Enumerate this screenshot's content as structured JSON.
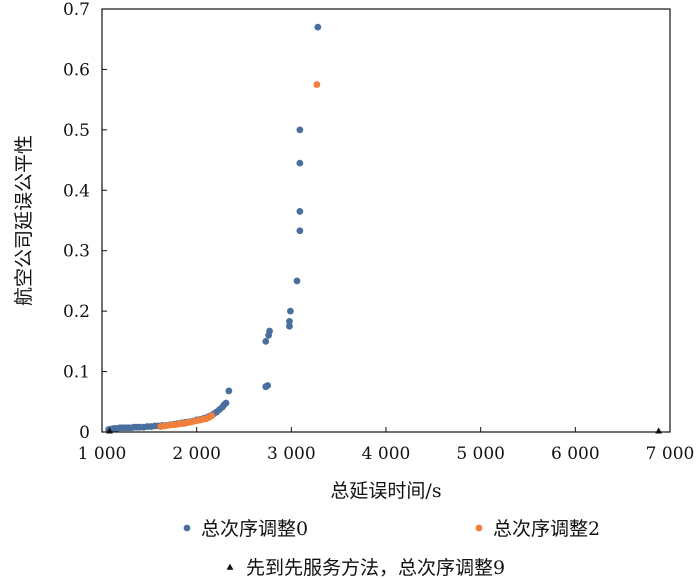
{
  "chart_data": {
    "type": "scatter",
    "xlabel": "总延误时间/s",
    "ylabel": "航空公司延误公平性",
    "xlim": [
      1000,
      7000
    ],
    "ylim": [
      0,
      0.7
    ],
    "x_ticks": [
      {
        "value": 1000,
        "label": "1 000"
      },
      {
        "value": 2000,
        "label": "2 000"
      },
      {
        "value": 3000,
        "label": "3 000"
      },
      {
        "value": 4000,
        "label": "4 000"
      },
      {
        "value": 5000,
        "label": "5 000"
      },
      {
        "value": 6000,
        "label": "6 000"
      },
      {
        "value": 7000,
        "label": "7 000"
      }
    ],
    "y_ticks": [
      {
        "value": 0,
        "label": "0"
      },
      {
        "value": 0.1,
        "label": "0.1"
      },
      {
        "value": 0.2,
        "label": "0.2"
      },
      {
        "value": 0.3,
        "label": "0.3"
      },
      {
        "value": 0.4,
        "label": "0.4"
      },
      {
        "value": 0.5,
        "label": "0.5"
      },
      {
        "value": 0.6,
        "label": "0.6"
      },
      {
        "value": 0.7,
        "label": "0.7"
      }
    ],
    "grid": false,
    "legend_position": "bottom",
    "series": [
      {
        "name": "总次序调整0",
        "color": "#4a6f9e",
        "marker": "circle",
        "points": [
          [
            1070,
            0.004
          ],
          [
            1100,
            0.005
          ],
          [
            1130,
            0.006
          ],
          [
            1160,
            0.006
          ],
          [
            1190,
            0.007
          ],
          [
            1220,
            0.007
          ],
          [
            1250,
            0.007
          ],
          [
            1280,
            0.007
          ],
          [
            1310,
            0.007
          ],
          [
            1340,
            0.008
          ],
          [
            1370,
            0.008
          ],
          [
            1400,
            0.008
          ],
          [
            1440,
            0.008
          ],
          [
            1480,
            0.009
          ],
          [
            1520,
            0.009
          ],
          [
            1560,
            0.01
          ],
          [
            1600,
            0.01
          ],
          [
            1640,
            0.011
          ],
          [
            1680,
            0.011
          ],
          [
            1720,
            0.012
          ],
          [
            1760,
            0.013
          ],
          [
            1800,
            0.014
          ],
          [
            1840,
            0.015
          ],
          [
            1880,
            0.016
          ],
          [
            1920,
            0.017
          ],
          [
            1960,
            0.018
          ],
          [
            2000,
            0.02
          ],
          [
            2040,
            0.021
          ],
          [
            2080,
            0.023
          ],
          [
            2120,
            0.025
          ],
          [
            2150,
            0.027
          ],
          [
            2180,
            0.03
          ],
          [
            2210,
            0.033
          ],
          [
            2240,
            0.037
          ],
          [
            2270,
            0.041
          ],
          [
            2290,
            0.045
          ],
          [
            2310,
            0.048
          ],
          [
            2340,
            0.068
          ],
          [
            2730,
            0.075
          ],
          [
            2750,
            0.077
          ],
          [
            2730,
            0.15
          ],
          [
            2760,
            0.16
          ],
          [
            2770,
            0.167
          ],
          [
            2980,
            0.175
          ],
          [
            2980,
            0.183
          ],
          [
            2990,
            0.2
          ],
          [
            3060,
            0.25
          ],
          [
            3090,
            0.333
          ],
          [
            3090,
            0.365
          ],
          [
            3090,
            0.445
          ],
          [
            3090,
            0.5
          ],
          [
            3280,
            0.67
          ]
        ]
      },
      {
        "name": "总次序调整2",
        "color": "#f07f3c",
        "marker": "circle",
        "points": [
          [
            1620,
            0.009
          ],
          [
            1660,
            0.01
          ],
          [
            1700,
            0.011
          ],
          [
            1740,
            0.012
          ],
          [
            1770,
            0.012
          ],
          [
            1800,
            0.013
          ],
          [
            1830,
            0.014
          ],
          [
            1860,
            0.014
          ],
          [
            1890,
            0.015
          ],
          [
            1920,
            0.016
          ],
          [
            1950,
            0.017
          ],
          [
            1980,
            0.018
          ],
          [
            2010,
            0.019
          ],
          [
            2040,
            0.02
          ],
          [
            2070,
            0.021
          ],
          [
            2100,
            0.022
          ],
          [
            2130,
            0.024
          ],
          [
            2160,
            0.027
          ],
          [
            3270,
            0.575
          ]
        ]
      },
      {
        "name": "先到先服务方法，总次序调整9",
        "color": "#111111",
        "marker": "triangle",
        "points": [
          [
            6880,
            0.002
          ],
          [
            1080,
            0.002
          ]
        ]
      }
    ]
  }
}
